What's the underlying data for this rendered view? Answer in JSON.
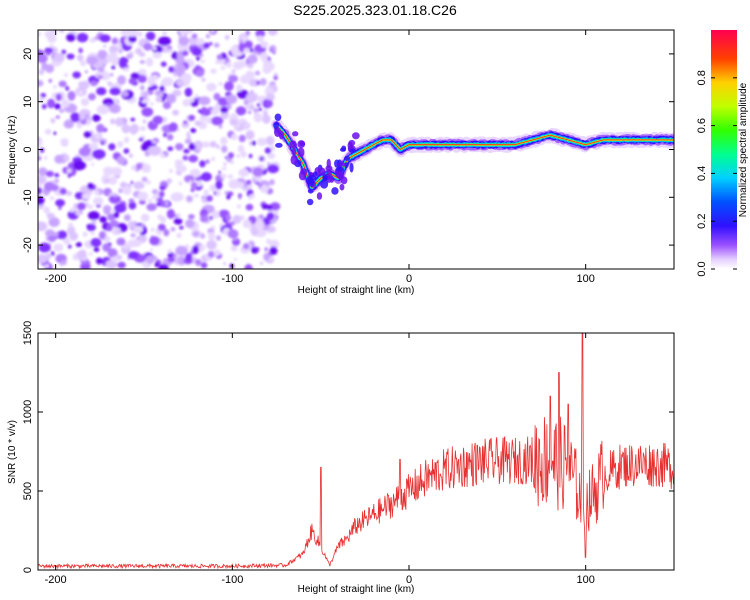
{
  "title": "S225.2025.323.01.18.C26",
  "chart_data": [
    {
      "type": "heatmap",
      "name": "spectrogram",
      "xlabel": "Height of straight line (km)",
      "ylabel": "Frequency (Hz)",
      "xlim": [
        -210,
        150
      ],
      "ylim": [
        -25,
        25
      ],
      "x_ticks": [
        -200,
        -100,
        0,
        100
      ],
      "y_ticks": [
        -20,
        -10,
        0,
        10,
        20
      ],
      "noise_region_x": [
        -210,
        -75
      ],
      "ridge": {
        "x": [
          -75,
          -70,
          -65,
          -60,
          -55,
          -50,
          -45,
          -40,
          -35,
          -30,
          -25,
          -20,
          -15,
          -10,
          -5,
          0,
          10,
          20,
          30,
          40,
          50,
          60,
          70,
          80,
          90,
          100,
          110,
          120,
          130,
          140,
          150
        ],
        "freq": [
          5,
          3,
          0,
          -3,
          -8,
          -6,
          -5,
          -6,
          -2,
          -1,
          0,
          1,
          2,
          2,
          0,
          1,
          1,
          1,
          1,
          1,
          1,
          1,
          2,
          3,
          2,
          1,
          2,
          2,
          2,
          2,
          2
        ]
      },
      "colorbar": {
        "label": "Normalized spectral amplitude",
        "ticks": [
          0.0,
          0.2,
          0.4,
          0.6,
          0.8
        ],
        "range": [
          0,
          1
        ]
      }
    },
    {
      "type": "line",
      "name": "snr",
      "xlabel": "Height of straight line (km)",
      "ylabel": "SNR (10 * v/v)",
      "xlim": [
        -210,
        150
      ],
      "ylim": [
        0,
        1500
      ],
      "x_ticks": [
        -200,
        -100,
        0,
        100
      ],
      "y_ticks": [
        0,
        500,
        1000,
        1500
      ],
      "color": "#e83030",
      "envelope": {
        "x": [
          -210,
          -100,
          -70,
          -60,
          -55,
          -50,
          -45,
          -40,
          -35,
          -30,
          -20,
          -10,
          0,
          10,
          20,
          30,
          40,
          50,
          60,
          70,
          80,
          90,
          100,
          110,
          120,
          130,
          140,
          150
        ],
        "y": [
          25,
          25,
          30,
          100,
          250,
          150,
          30,
          150,
          200,
          280,
          350,
          420,
          500,
          580,
          630,
          660,
          680,
          690,
          690,
          700,
          700,
          650,
          400,
          600,
          660,
          670,
          670,
          650
        ]
      },
      "spikes": [
        {
          "x": -50,
          "y": 650
        },
        {
          "x": -5,
          "y": 700
        },
        {
          "x": 80,
          "y": 1100
        },
        {
          "x": 85,
          "y": 1250
        },
        {
          "x": 90,
          "y": 1050
        },
        {
          "x": 98,
          "y": 1500
        },
        {
          "x": 100,
          "y": 80
        }
      ]
    }
  ]
}
